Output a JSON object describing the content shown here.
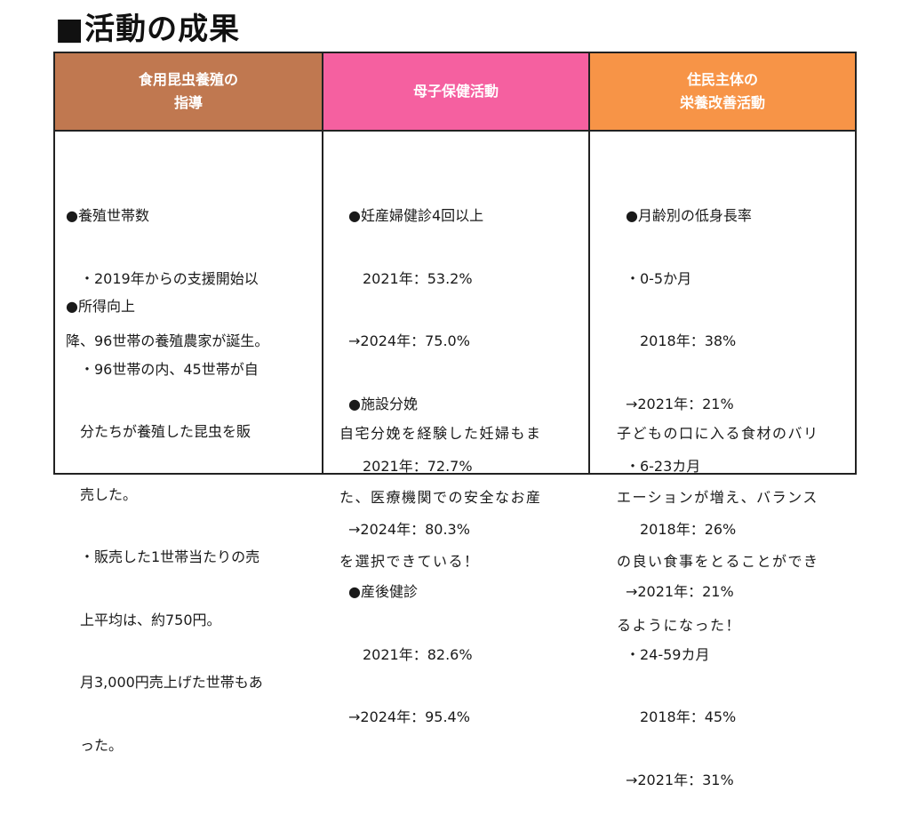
{
  "title": "■活動の成果",
  "columns": [
    {
      "header": "食用昆虫養殖の\n指導",
      "color": "#c07850",
      "lines_a": [
        "●養殖世帯数",
        "　・2019年からの支援開始以",
        "降、96世帯の養殖農家が誕生。"
      ],
      "lines_b": [
        "●所得向上",
        "　・96世帯の内、45世帯が自",
        "　分たちが養殖した昆虫を販",
        "　売した。",
        "　・販売した1世帯当たりの売",
        "　上平均は、約750円。",
        "　月3,000円売上げた世帯もあ",
        "　った。"
      ]
    },
    {
      "header": "母子保健活動",
      "color": "#f560a0",
      "lines": [
        "　●妊産婦健診4回以上",
        "　　2021年：53.2%",
        "　→2024年：75.0%",
        "　●施設分娩",
        "　　2021年：72.7%",
        "　→2024年：80.3%",
        "　●産後健診",
        "　　2021年：82.6%",
        "　→2024年：95.4%"
      ],
      "note": [
        "自宅分娩を経験した妊婦もま",
        "た、医療機関での安全なお産",
        "を選択できている！"
      ]
    },
    {
      "header": "住民主体の\n栄養改善活動",
      "color": "#f79447",
      "lines": [
        "　●月齢別の低身長率",
        "　・0-5か月",
        "　　2018年：38%",
        "　→2021年：21%",
        "　・6-23カ月",
        "　　2018年：26%",
        "　→2021年：21%",
        "　・24-59カ月",
        "　　2018年：45%",
        "　→2021年：31%"
      ],
      "note": [
        "子どもの口に入る食材のバリ",
        "エーションが増え、バランス",
        "の良い食事をとることができ",
        "るようになった！"
      ]
    }
  ]
}
